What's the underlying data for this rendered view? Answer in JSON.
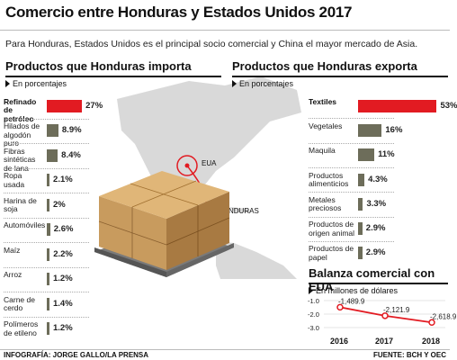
{
  "title": "Comercio entre Honduras y Estados Unidos 2017",
  "subtitle": "Para Honduras, Estados Unidos es el principal socio comercial y China el mayor mercado de Asia.",
  "imports": {
    "heading": "Productos que Honduras importa",
    "unit": "En porcentajes",
    "items": [
      {
        "label": "Refinado de petróleo",
        "value": 27,
        "value_label": "27%"
      },
      {
        "label": "Hilados de algodón puro",
        "value": 8.9,
        "value_label": "8.9%"
      },
      {
        "label": "Fibras sintéticas de lana",
        "value": 8.4,
        "value_label": "8.4%"
      },
      {
        "label": "Ropa usada",
        "value": 2.1,
        "value_label": "2.1%"
      },
      {
        "label": "Harina de soja",
        "value": 2,
        "value_label": "2%"
      },
      {
        "label": "Automóviles",
        "value": 2.6,
        "value_label": "2.6%"
      },
      {
        "label": "Maíz",
        "value": 2.2,
        "value_label": "2.2%"
      },
      {
        "label": "Arroz",
        "value": 1.2,
        "value_label": "1.2%"
      },
      {
        "label": "Carne de cerdo",
        "value": 1.4,
        "value_label": "1.4%"
      },
      {
        "label": "Polímeros de etileno",
        "value": 1.2,
        "value_label": "1.2%"
      }
    ]
  },
  "exports": {
    "heading": "Productos que Honduras exporta",
    "unit": "En porcentajes",
    "items": [
      {
        "label": "Textiles",
        "value": 53,
        "value_label": "53%"
      },
      {
        "label": "Vegetales",
        "value": 16,
        "value_label": "16%"
      },
      {
        "label": "Maquila",
        "value": 11,
        "value_label": "11%"
      },
      {
        "label": "Productos alimenticios",
        "value": 4.3,
        "value_label": "4.3%"
      },
      {
        "label": "Metales preciosos",
        "value": 3.3,
        "value_label": "3.3%"
      },
      {
        "label": "Productos de origen animal",
        "value": 2.9,
        "value_label": "2.9%"
      },
      {
        "label": "Productos de papel",
        "value": 2.9,
        "value_label": "2.9%"
      }
    ]
  },
  "map": {
    "eua_label": "EUA",
    "honduras_label": "HONDURAS"
  },
  "balance": {
    "heading": "Balanza comercial con EUA",
    "unit": "En millones de dólares",
    "yticks": [
      "-1.0",
      "-2.0",
      "-3.0"
    ],
    "years": [
      "2016",
      "2017",
      "2018"
    ],
    "values": [
      -1489.9,
      -2121.9,
      -2618.9
    ],
    "value_labels": [
      "-1,489.9",
      "-2,121.9",
      "-2,618.9"
    ]
  },
  "footer": {
    "credit": "INFOGRAFÍA: JORGE GALLO/LA PRENSA",
    "source": "FUENTE: BCH Y OEC"
  },
  "colors": {
    "highlight": "#e21b22",
    "bar": "#6d6d5a",
    "map_land": "#d9d9d9",
    "box": "#c89b5e"
  },
  "chart_data": [
    {
      "type": "bar",
      "title": "Productos que Honduras importa",
      "subtitle": "En porcentajes",
      "categories": [
        "Refinado de petróleo",
        "Hilados de algodón puro",
        "Fibras sintéticas de lana",
        "Ropa usada",
        "Harina de soja",
        "Automóviles",
        "Maíz",
        "Arroz",
        "Carne de cerdo",
        "Polímeros de etileno"
      ],
      "values": [
        27,
        8.9,
        8.4,
        2.1,
        2,
        2.6,
        2.2,
        1.2,
        1.4,
        1.2
      ]
    },
    {
      "type": "bar",
      "title": "Productos que Honduras exporta",
      "subtitle": "En porcentajes",
      "categories": [
        "Textiles",
        "Vegetales",
        "Maquila",
        "Productos alimenticios",
        "Metales preciosos",
        "Productos de origen animal",
        "Productos de papel"
      ],
      "values": [
        53,
        16,
        11,
        4.3,
        3.3,
        2.9,
        2.9
      ]
    },
    {
      "type": "line",
      "title": "Balanza comercial con EUA",
      "subtitle": "En millones de dólares",
      "x": [
        "2016",
        "2017",
        "2018"
      ],
      "values": [
        -1489.9,
        -2121.9,
        -2618.9
      ],
      "ylim": [
        -3000,
        -1000
      ]
    }
  ]
}
